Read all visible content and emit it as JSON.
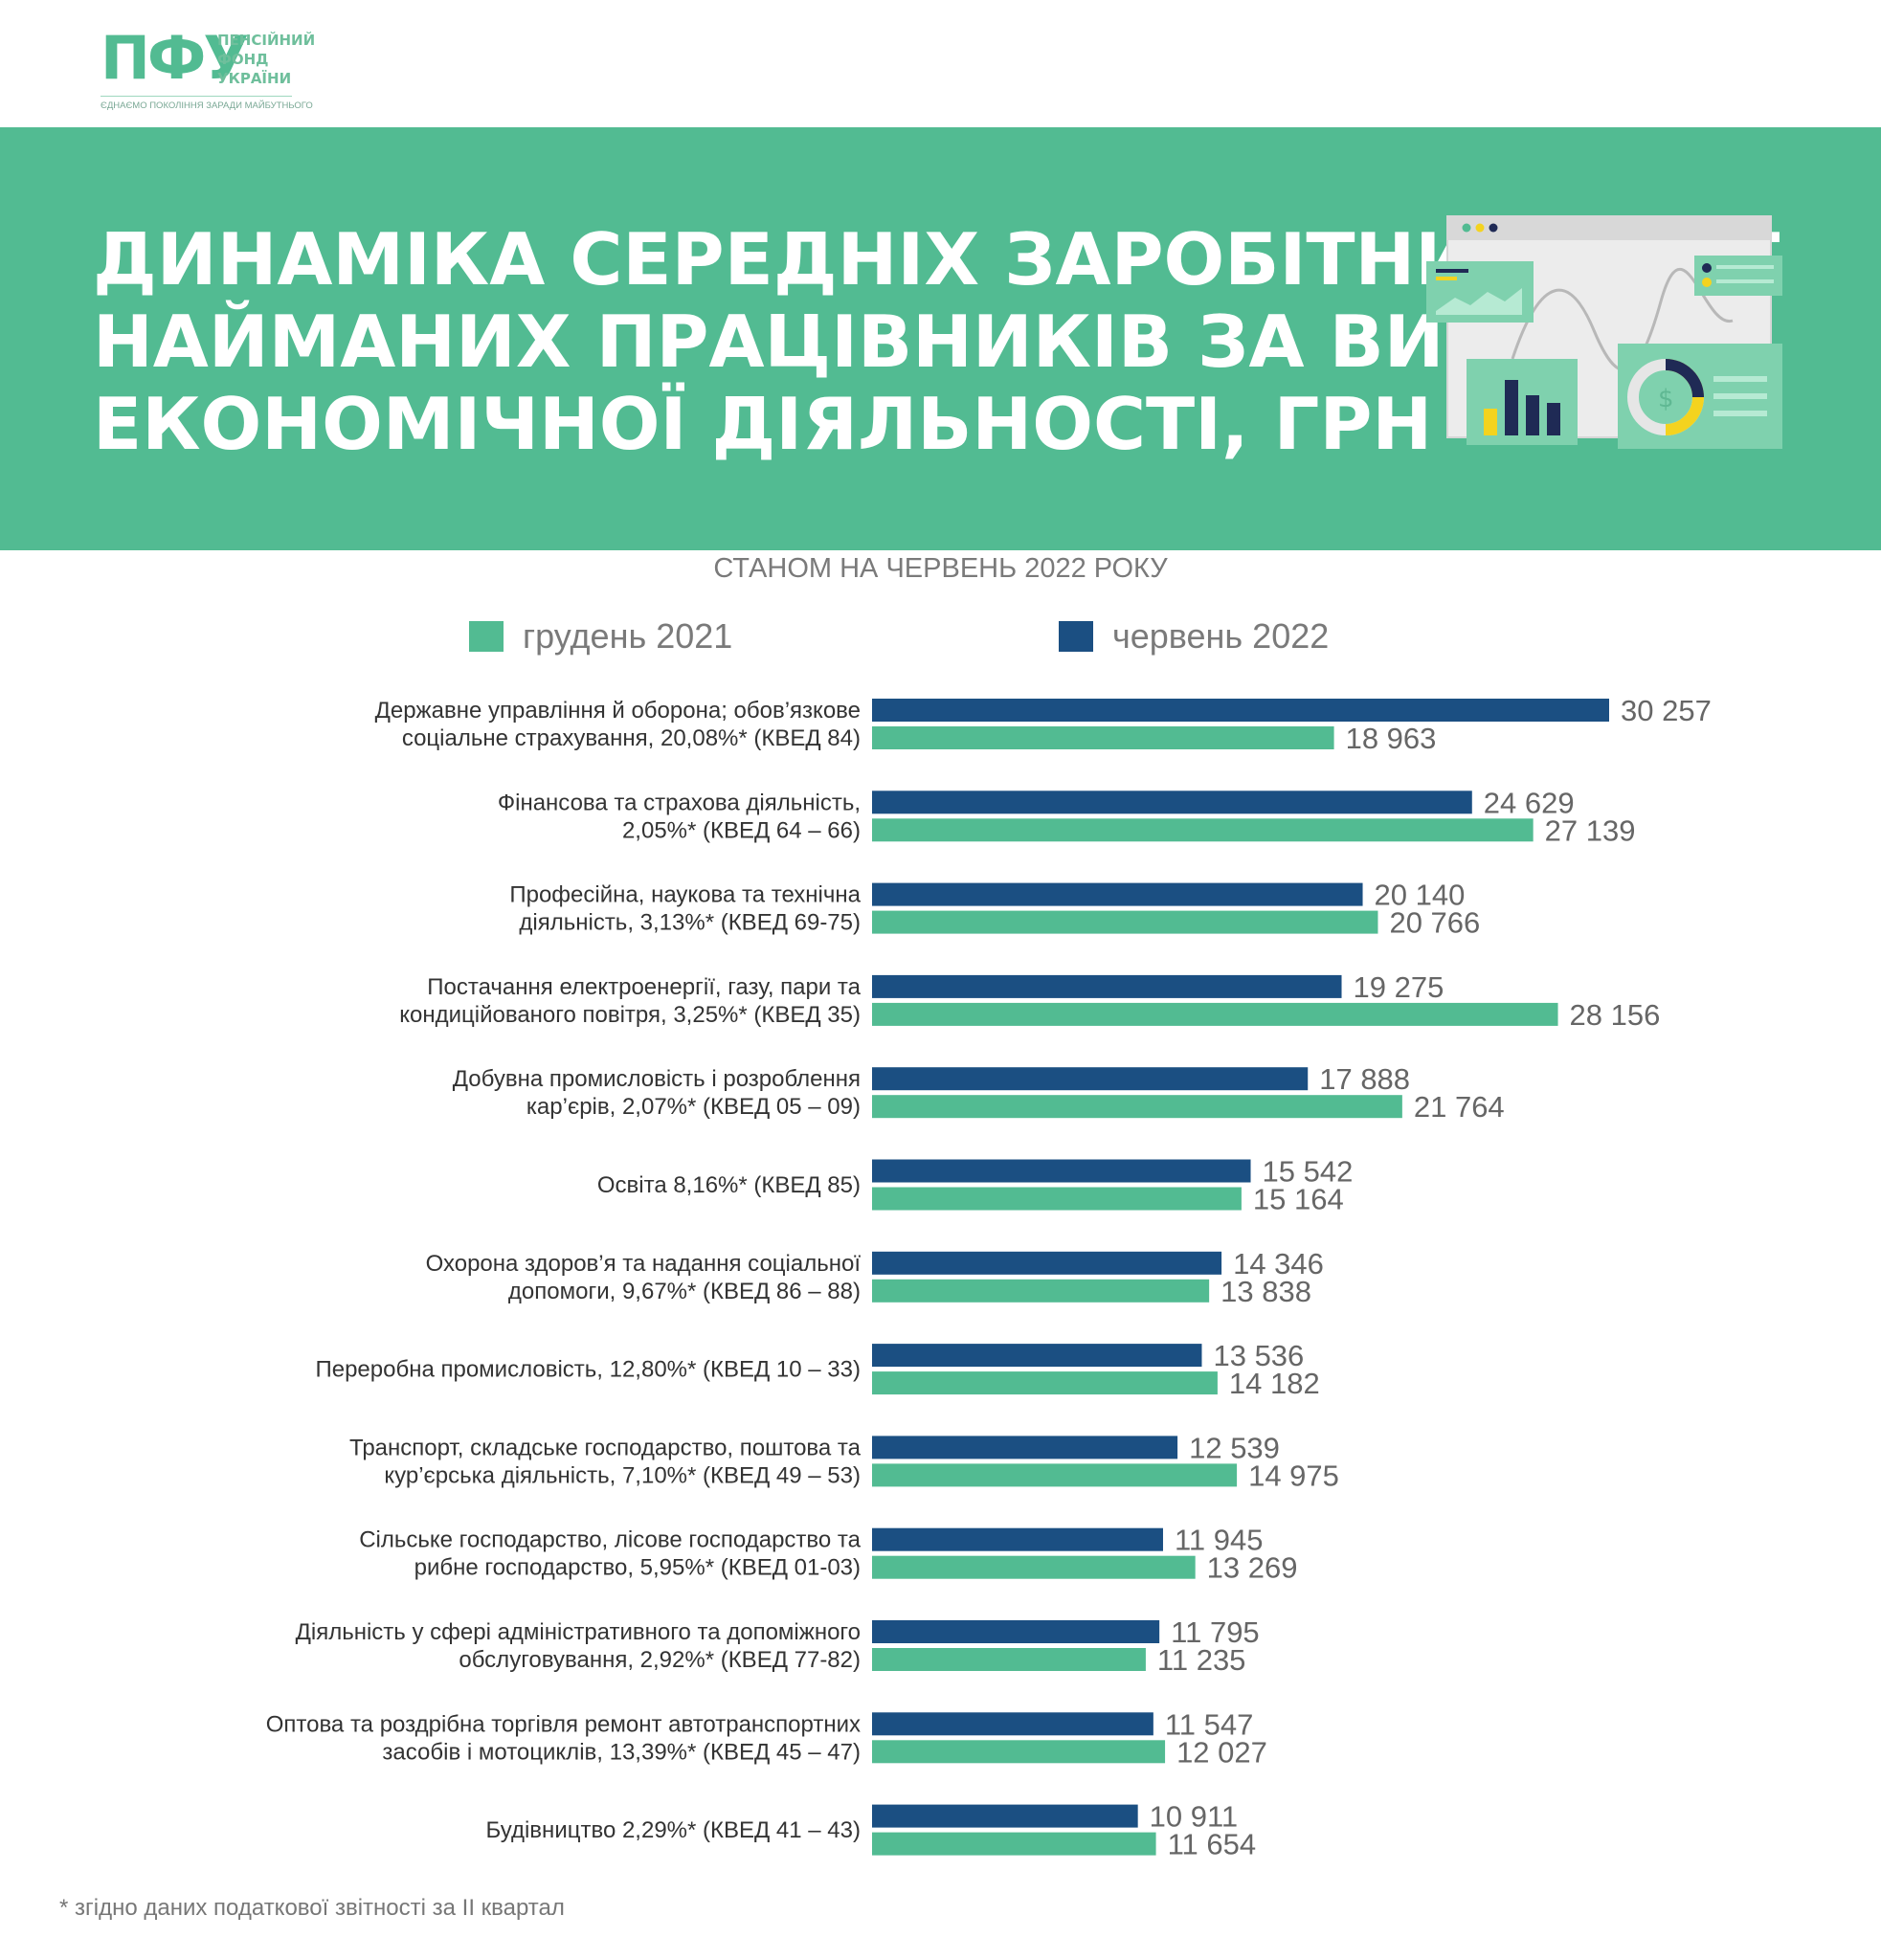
{
  "logo": {
    "mark": "ПФУ",
    "name_lines": [
      "ПЕНСІЙНИЙ",
      "ФОНД",
      "УКРАЇНИ"
    ],
    "motto": "ЄДНАЄМО ПОКОЛІННЯ ЗАРАДИ МАЙБУТНЬОГО"
  },
  "colors": {
    "brand_green": "#52bb92",
    "series_june": "#1b4f82",
    "series_dec": "#52bb92"
  },
  "chart_data": {
    "type": "bar",
    "orientation": "horizontal",
    "title_lines": [
      "ДИНАМІКА СЕРЕДНІХ ЗАРОБІТНИХ ПЛАТ",
      "НАЙМАНИХ ПРАЦІВНИКІВ ЗА ВИДАМИ",
      "ЕКОНОМІЧНОЇ ДІЯЛЬНОСТІ, ГРН"
    ],
    "subtitle": "СТАНОМ НА ЧЕРВЕНЬ 2022 РОКУ",
    "legend": [
      {
        "name": "грудень 2021",
        "color": "#52bb92"
      },
      {
        "name": "червень 2022",
        "color": "#1b4f82"
      }
    ],
    "categories": [
      [
        "Державне управління й оборона; обов’язкове",
        "соціальне страхування, 20,08%* (КВЕД 84)"
      ],
      [
        "Фінансова та страхова діяльність,",
        "2,05%* (КВЕД 64 – 66)"
      ],
      [
        "Професійна, наукова та технічна",
        "діяльність, 3,13%* (КВЕД 69-75)"
      ],
      [
        "Постачання електроенергії, газу, пари та",
        "кондиційованого повітря, 3,25%* (КВЕД 35)"
      ],
      [
        "Добувна промисловість і розроблення",
        "кар’єрів, 2,07%* (КВЕД 05 – 09)"
      ],
      [
        "Освіта 8,16%* (КВЕД 85)"
      ],
      [
        "Охорона здоров’я та надання соціальної",
        "допомоги, 9,67%* (КВЕД 86 – 88)"
      ],
      [
        "Переробна промисловість, 12,80%* (КВЕД 10 – 33)"
      ],
      [
        "Транспорт, складське господарство, поштова та",
        "кур’єрська діяльність, 7,10%* (КВЕД 49 – 53)"
      ],
      [
        "Сільське господарство, лісове господарство та",
        "рибне господарство, 5,95%* (КВЕД 01-03)"
      ],
      [
        "Діяльність у сфері адміністративного та допоміжного",
        "обслуговування, 2,92%* (КВЕД 77-82)"
      ],
      [
        "Оптова та роздрібна торгівля ремонт автотранспортних",
        "засобів і мотоциклів, 13,39%* (КВЕД 45 – 47)"
      ],
      [
        "Будівництво 2,29%* (КВЕД 41 – 43)"
      ]
    ],
    "series": [
      {
        "name": "червень 2022",
        "color": "#1b4f82",
        "values": [
          30257,
          24629,
          20140,
          19275,
          17888,
          15542,
          14346,
          13536,
          12539,
          11945,
          11795,
          11547,
          10911
        ],
        "labels": [
          "30 257",
          "24 629",
          "20 140",
          "19 275",
          "17 888",
          "15 542",
          "14 346",
          "13 536",
          "12 539",
          "11 945",
          "11 795",
          "11 547",
          "10 911"
        ]
      },
      {
        "name": "грудень 2021",
        "color": "#52bb92",
        "values": [
          18963,
          27139,
          20766,
          28156,
          21764,
          15164,
          13838,
          14182,
          14975,
          13269,
          11235,
          12027,
          11654
        ],
        "labels": [
          "18 963",
          "27 139",
          "20 766",
          "28 156",
          "21 764",
          "15 164",
          "13 838",
          "14 182",
          "14 975",
          "13 269",
          "11 235",
          "12 027",
          "11 654"
        ]
      }
    ],
    "xlim": [
      0,
      30257
    ],
    "grid": false
  },
  "footnote": "* згідно даних податкової звітності за ІІ квартал"
}
